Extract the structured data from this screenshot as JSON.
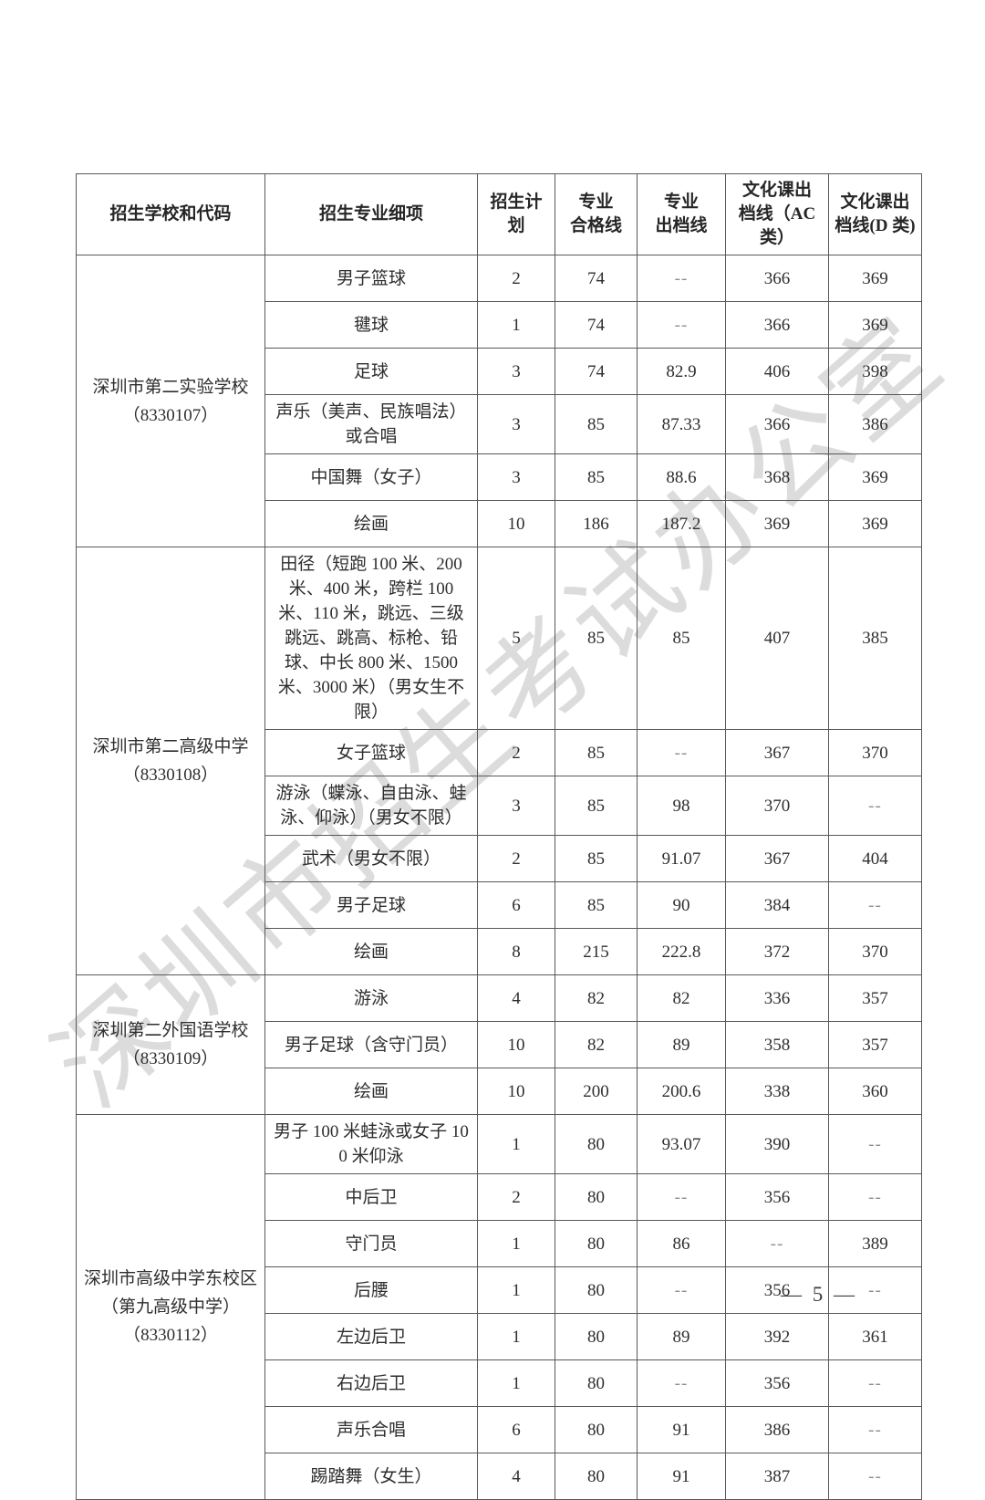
{
  "watermark": "深圳市招生考试办公室",
  "page_number": "— 5 —",
  "table": {
    "headers": [
      "招生学校和代码",
      "招生专业细项",
      "招生计\n划",
      "专业\n合格线",
      "专业\n出档线",
      "文化课出\n档线（AC\n类）",
      "文化课出\n档线(D 类)"
    ],
    "schools": [
      {
        "name_lines": [
          "深圳市第二实验学校",
          "（8330107）"
        ],
        "rows": [
          [
            "男子篮球",
            "2",
            "74",
            "--",
            "366",
            "369"
          ],
          [
            "毽球",
            "1",
            "74",
            "--",
            "366",
            "369"
          ],
          [
            "足球",
            "3",
            "74",
            "82.9",
            "406",
            "398"
          ],
          [
            "声乐（美声、民族唱法）或合唱",
            "3",
            "85",
            "87.33",
            "366",
            "386"
          ],
          [
            "中国舞（女子）",
            "3",
            "85",
            "88.6",
            "368",
            "369"
          ],
          [
            "绘画",
            "10",
            "186",
            "187.2",
            "369",
            "369"
          ]
        ]
      },
      {
        "name_lines": [
          "深圳市第二高级中学",
          "（8330108）"
        ],
        "rows": [
          [
            "田径（短跑 100 米、200 米、400 米，跨栏 100 米、110 米，跳远、三级跳远、跳高、标枪、铅球、中长 800 米、1500 米、3000 米）（男女生不限）",
            "5",
            "85",
            "85",
            "407",
            "385"
          ],
          [
            "女子篮球",
            "2",
            "85",
            "--",
            "367",
            "370"
          ],
          [
            "游泳（蝶泳、自由泳、蛙泳、仰泳）（男女不限）",
            "3",
            "85",
            "98",
            "370",
            "--"
          ],
          [
            "武术（男女不限）",
            "2",
            "85",
            "91.07",
            "367",
            "404"
          ],
          [
            "男子足球",
            "6",
            "85",
            "90",
            "384",
            "--"
          ],
          [
            "绘画",
            "8",
            "215",
            "222.8",
            "372",
            "370"
          ]
        ]
      },
      {
        "name_lines": [
          "深圳第二外国语学校",
          "（8330109）"
        ],
        "rows": [
          [
            "游泳",
            "4",
            "82",
            "82",
            "336",
            "357"
          ],
          [
            "男子足球（含守门员）",
            "10",
            "82",
            "89",
            "358",
            "357"
          ],
          [
            "绘画",
            "10",
            "200",
            "200.6",
            "338",
            "360"
          ]
        ]
      },
      {
        "name_lines": [
          "深圳市高级中学东校区",
          "（第九高级中学）",
          "（8330112）"
        ],
        "rows": [
          [
            "男子 100 米蛙泳或女子 100 米仰泳",
            "1",
            "80",
            "93.07",
            "390",
            "--"
          ],
          [
            "中后卫",
            "2",
            "80",
            "--",
            "356",
            "--"
          ],
          [
            "守门员",
            "1",
            "80",
            "86",
            "--",
            "389"
          ],
          [
            "后腰",
            "1",
            "80",
            "--",
            "356",
            "--"
          ],
          [
            "左边后卫",
            "1",
            "80",
            "89",
            "392",
            "361"
          ],
          [
            "右边后卫",
            "1",
            "80",
            "--",
            "356",
            "--"
          ],
          [
            "声乐合唱",
            "6",
            "80",
            "91",
            "386",
            "--"
          ],
          [
            "踢踏舞（女生）",
            "4",
            "80",
            "91",
            "387",
            "--"
          ]
        ]
      }
    ]
  }
}
